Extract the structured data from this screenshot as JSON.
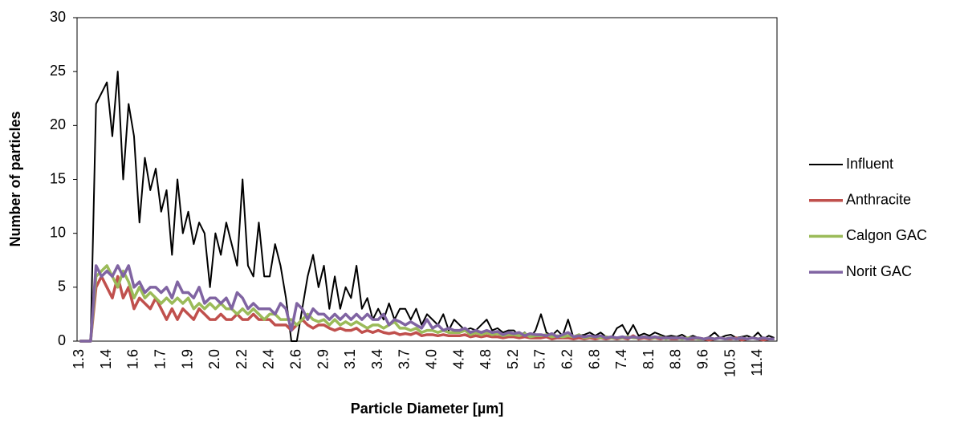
{
  "chart_data": {
    "type": "line",
    "x_label": "Particle Diameter [µm]",
    "y_label": "Number of particles",
    "categories": [
      "1.3",
      null,
      null,
      null,
      null,
      "1.4",
      null,
      null,
      null,
      null,
      "1.6",
      null,
      null,
      null,
      null,
      "1.7",
      null,
      null,
      null,
      null,
      "1.9",
      null,
      null,
      null,
      null,
      "2.0",
      null,
      null,
      null,
      null,
      "2.2",
      null,
      null,
      null,
      null,
      "2.4",
      null,
      null,
      null,
      null,
      "2.6",
      null,
      null,
      null,
      null,
      "2.9",
      null,
      null,
      null,
      null,
      "3.1",
      null,
      null,
      null,
      null,
      "3.4",
      null,
      null,
      null,
      null,
      "3.7",
      null,
      null,
      null,
      null,
      "4.0",
      null,
      null,
      null,
      null,
      "4.4",
      null,
      null,
      null,
      null,
      "4.8",
      null,
      null,
      null,
      null,
      "5.2",
      null,
      null,
      null,
      null,
      "5.7",
      null,
      null,
      null,
      null,
      "6.2",
      null,
      null,
      null,
      null,
      "6.8",
      null,
      null,
      null,
      null,
      "7.4",
      null,
      null,
      null,
      null,
      "8.1",
      null,
      null,
      null,
      null,
      "8.8",
      null,
      null,
      null,
      null,
      "9.6",
      null,
      null,
      null,
      null,
      "10.5",
      null,
      null,
      null,
      null,
      "11.4",
      null,
      null,
      null
    ],
    "series": [
      {
        "name": "Influent",
        "color": "#000000",
        "width": 2,
        "values": [
          0,
          0,
          0,
          22,
          23,
          24,
          19,
          25,
          15,
          22,
          19,
          11,
          17,
          14,
          16,
          12,
          14,
          8,
          15,
          10,
          12,
          9,
          11,
          10,
          5,
          10,
          8,
          11,
          9,
          7,
          15,
          7,
          6,
          11,
          6,
          6,
          9,
          7,
          4,
          0,
          0,
          3,
          6,
          8,
          5,
          7,
          3,
          6,
          3,
          5,
          4,
          7,
          3,
          4,
          2,
          3,
          2,
          3.5,
          2,
          3,
          3,
          2,
          3,
          1.5,
          2.5,
          2,
          1.5,
          2.5,
          1,
          2,
          1.5,
          1,
          1.2,
          1,
          1.5,
          2,
          1,
          1.2,
          0.8,
          1,
          1,
          0.5,
          0.8,
          0.3,
          1,
          2.5,
          0.8,
          0.5,
          1,
          0.5,
          2,
          0.3,
          0.5,
          0.6,
          0.8,
          0.5,
          0.8,
          0.4,
          0.3,
          1.2,
          1.5,
          0.6,
          1.5,
          0.5,
          0.7,
          0.5,
          0.8,
          0.6,
          0.4,
          0.5,
          0.4,
          0.6,
          0.3,
          0.5,
          0.3,
          0.2,
          0.4,
          0.8,
          0.3,
          0.5,
          0.6,
          0.3,
          0.4,
          0.5,
          0.3,
          0.8,
          0.2,
          0.5,
          0.3
        ]
      },
      {
        "name": "Anthracite",
        "color": "#c0504d",
        "width": 3.5,
        "values": [
          0,
          0,
          0,
          5,
          6,
          5,
          4,
          6,
          4,
          5,
          3,
          4,
          3.5,
          3,
          4,
          3,
          2,
          3,
          2,
          3,
          2.5,
          2,
          3,
          2.5,
          2,
          2,
          2.5,
          2,
          2,
          2.5,
          2,
          2,
          2.5,
          2,
          2,
          2,
          1.5,
          1.5,
          1.5,
          1,
          1.5,
          2,
          1.5,
          1.2,
          1.5,
          1.5,
          1.2,
          1,
          1.2,
          1,
          1,
          1.2,
          0.8,
          1,
          0.8,
          1,
          0.8,
          0.7,
          0.8,
          0.6,
          0.7,
          0.6,
          0.8,
          0.5,
          0.6,
          0.6,
          0.5,
          0.6,
          0.5,
          0.5,
          0.5,
          0.6,
          0.4,
          0.5,
          0.4,
          0.5,
          0.4,
          0.4,
          0.3,
          0.4,
          0.4,
          0.3,
          0.4,
          0.3,
          0.3,
          0.3,
          0.4,
          0.2,
          0.3,
          0.3,
          0.3,
          0.2,
          0.3,
          0.2,
          0.3,
          0.2,
          0.3,
          0.2,
          0.3,
          0.2,
          0.3,
          0.2,
          0.5,
          0.2,
          0.3,
          0.2,
          0.3,
          0.2,
          0.3,
          0.2,
          0.2,
          0.3,
          0.2,
          0.2,
          0.3,
          0.2,
          0.1,
          0.2,
          0.3,
          0.2,
          0.2,
          0.3,
          0.1,
          0.2,
          0.3,
          0.2,
          0.1,
          0.2,
          0.2
        ]
      },
      {
        "name": "Calgon GAC",
        "color": "#9bbb59",
        "width": 3.5,
        "values": [
          0,
          0,
          0,
          6,
          6.5,
          7,
          6,
          5,
          6.5,
          5.5,
          4,
          5,
          4,
          4.5,
          4,
          3.5,
          4,
          3.5,
          4,
          3.5,
          4,
          3,
          3.5,
          3,
          3.5,
          3,
          3.5,
          3,
          3,
          2.5,
          3,
          2.5,
          3,
          2.5,
          2,
          2.5,
          2.5,
          2,
          2,
          2,
          1.5,
          2,
          2.5,
          2,
          1.8,
          2,
          1.5,
          2,
          1.5,
          1.8,
          1.5,
          1.8,
          1.5,
          1.2,
          1.5,
          1.5,
          1.2,
          1.5,
          1.8,
          1.2,
          1.2,
          1,
          1.2,
          0.8,
          1,
          1,
          0.8,
          1,
          0.8,
          0.8,
          0.8,
          1,
          0.6,
          0.8,
          0.6,
          0.8,
          0.6,
          0.7,
          0.5,
          0.6,
          0.6,
          0.5,
          0.7,
          0.4,
          0.5,
          0.5,
          0.6,
          0.4,
          0.5,
          0.4,
          0.5,
          0.4,
          0.6,
          0.3,
          0.4,
          0.4,
          0.3,
          0.4,
          0.3,
          0.3,
          0.3,
          0.4,
          0.3,
          0.3,
          0.4,
          0.3,
          0.3,
          0.4,
          0.2,
          0.3,
          0.3,
          0.2,
          0.3,
          0.3,
          0.2,
          0.2,
          0.3,
          0.2,
          0.3,
          0.2,
          0.3,
          0.2,
          0.3,
          0.2,
          0.3,
          0.2,
          0.3,
          0.2,
          0.2
        ]
      },
      {
        "name": "Norit GAC",
        "color": "#8064a2",
        "width": 3.5,
        "values": [
          0,
          0,
          0,
          7,
          6,
          6.5,
          6,
          7,
          6,
          7,
          5,
          5.5,
          4.5,
          5,
          5,
          4.5,
          5,
          4,
          5.5,
          4.5,
          4.5,
          4,
          5,
          3.5,
          4,
          4,
          3.5,
          4,
          3,
          4.5,
          4,
          3,
          3.5,
          3,
          3,
          3,
          2.5,
          3.5,
          3,
          1,
          3.5,
          3,
          2,
          3,
          2.5,
          2.5,
          2,
          2.5,
          2,
          2.5,
          2,
          2.5,
          2,
          2.5,
          2,
          2,
          2.5,
          1.5,
          2,
          1.8,
          1.5,
          1.8,
          1.5,
          1.2,
          2,
          1.2,
          1.5,
          1,
          1.2,
          1,
          1,
          1.2,
          0.8,
          1,
          0.8,
          1,
          0.8,
          0.9,
          0.6,
          0.8,
          0.7,
          0.8,
          0.5,
          0.7,
          0.6,
          0.6,
          0.5,
          0.7,
          0.4,
          0.6,
          0.8,
          0.4,
          0.5,
          0.4,
          0.5,
          0.4,
          0.5,
          0.3,
          0.4,
          0.3,
          0.4,
          0.3,
          0.4,
          0.3,
          0.4,
          0.3,
          0.4,
          0.3,
          0.3,
          0.3,
          0.3,
          0.3,
          0.2,
          0.3,
          0.3,
          0.2,
          0.3,
          0.2,
          0.3,
          0.2,
          0.3,
          0.2,
          0.3,
          0.2,
          0.3,
          0.2,
          0.3,
          0.2,
          0.2
        ]
      }
    ],
    "ylim": [
      0,
      30
    ],
    "yticks": [
      0,
      5,
      10,
      15,
      20,
      25,
      30
    ],
    "legend": "right"
  }
}
